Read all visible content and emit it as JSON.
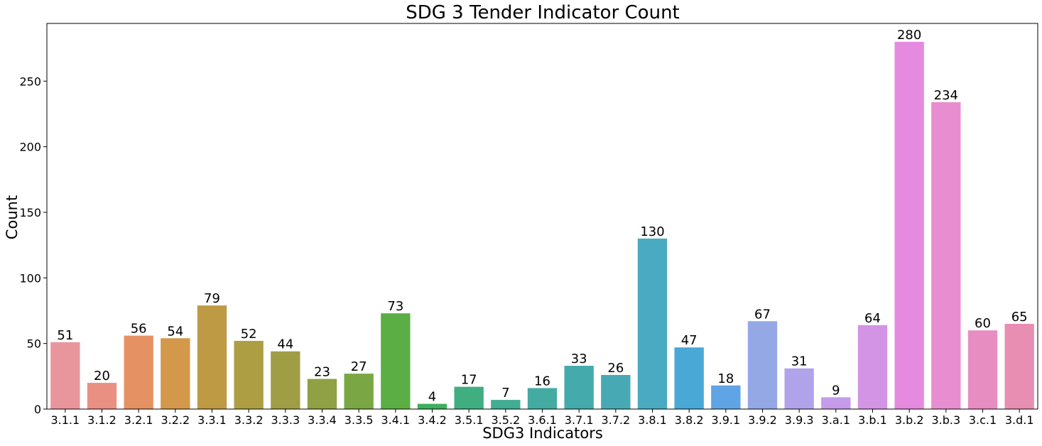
{
  "chart_data": {
    "type": "bar",
    "title": "SDG 3 Tender Indicator Count",
    "xlabel": "SDG3 Indicators",
    "ylabel": "Count",
    "categories": [
      "3.1.1",
      "3.1.2",
      "3.2.1",
      "3.2.2",
      "3.3.1",
      "3.3.2",
      "3.3.3",
      "3.3.4",
      "3.3.5",
      "3.4.1",
      "3.4.2",
      "3.5.1",
      "3.5.2",
      "3.6.1",
      "3.7.1",
      "3.7.2",
      "3.8.1",
      "3.8.2",
      "3.9.1",
      "3.9.2",
      "3.9.3",
      "3.a.1",
      "3.b.1",
      "3.b.2",
      "3.b.3",
      "3.c.1",
      "3.d.1"
    ],
    "values": [
      51,
      20,
      56,
      54,
      79,
      52,
      44,
      23,
      27,
      73,
      4,
      17,
      7,
      16,
      33,
      26,
      130,
      47,
      18,
      67,
      31,
      9,
      64,
      280,
      234,
      60,
      65
    ],
    "colors": [
      "#e8969c",
      "#e99083",
      "#e69163",
      "#d3984a",
      "#bf9a45",
      "#ad9e44",
      "#a09e44",
      "#8fa144",
      "#7aa743",
      "#5aae44",
      "#3fae5f",
      "#40ae80",
      "#42ad93",
      "#44aba2",
      "#45aaac",
      "#47a9b4",
      "#4aaac2",
      "#49a8d6",
      "#5fa4e4",
      "#94a8e6",
      "#b1a3ea",
      "#c69be9",
      "#d494e6",
      "#e68ae0",
      "#e88ed0",
      "#e88dc2",
      "#e88eb3"
    ],
    "yticks": [
      0,
      50,
      100,
      150,
      200,
      250
    ],
    "ylim": [
      0,
      294
    ],
    "grid": false,
    "legend": "none"
  }
}
